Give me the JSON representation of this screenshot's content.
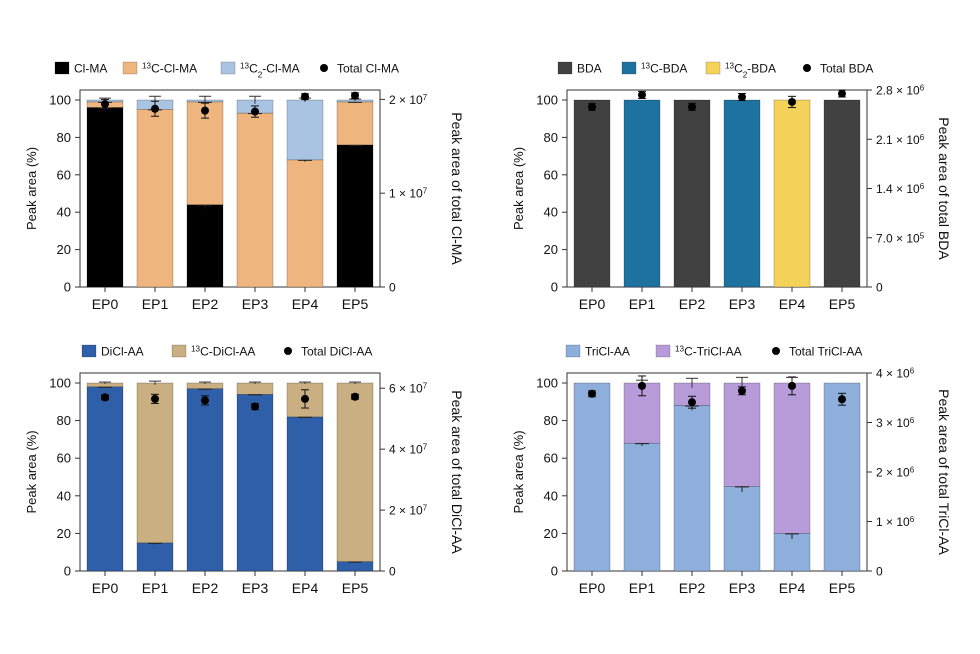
{
  "figure_categories": [
    "EP0",
    "EP1",
    "EP2",
    "EP3",
    "EP4",
    "EP5"
  ],
  "chart_data": [
    {
      "type": "bar",
      "stacked": true,
      "title": "",
      "categories": [
        "EP0",
        "EP1",
        "EP2",
        "EP3",
        "EP4",
        "EP5"
      ],
      "ylabel": "Peak area (%)",
      "ylim": [
        0,
        100
      ],
      "yticks": [
        "0",
        "20",
        "40",
        "60",
        "80",
        "100"
      ],
      "y2label": "Peak area of total Cl-MA",
      "y2ticks": [
        {
          "base": "0",
          "exp": ""
        },
        {
          "base": "1 × 10",
          "exp": "7"
        },
        {
          "base": "2 × 10",
          "exp": "7"
        }
      ],
      "legend": [
        {
          "pre": "",
          "sup": "",
          "main": "Cl-MA",
          "sub": "",
          "post": ""
        },
        {
          "pre": "",
          "sup": "13",
          "main": "C-Cl-MA",
          "sub": "",
          "post": ""
        },
        {
          "pre": "",
          "sup": "13",
          "main": "C",
          "sub": "2",
          "post": "-Cl-MA"
        },
        {
          "pre": "",
          "sup": "",
          "main": "Total Cl-MA",
          "sub": "",
          "post": ""
        }
      ],
      "series": [
        {
          "name": "Cl-MA",
          "color": "#000000",
          "values": [
            96,
            0,
            44,
            0,
            0,
            76
          ]
        },
        {
          "name": "13C-Cl-MA",
          "color": "#EFB57F",
          "values": [
            3,
            95,
            55,
            93,
            68,
            23
          ]
        },
        {
          "name": "13C2-Cl-MA",
          "color": "#A9C4E3",
          "values": [
            1,
            5,
            1,
            7,
            32,
            1
          ]
        }
      ],
      "error_bars": [
        1.0,
        2.0,
        2.0,
        2.0,
        1.0,
        0.5
      ],
      "total": {
        "name": "Total Cl-MA",
        "y2max": 21000000.0,
        "values": [
          19500000.0,
          19000000.0,
          18800000.0,
          18700000.0,
          20300000.0,
          20400000.0
        ],
        "errors": [
          500000.0,
          800000.0,
          800000.0,
          600000.0,
          300000.0,
          300000.0
        ]
      }
    },
    {
      "type": "bar",
      "stacked": true,
      "title": "",
      "categories": [
        "EP0",
        "EP1",
        "EP2",
        "EP3",
        "EP4",
        "EP5"
      ],
      "ylabel": "Peak area (%)",
      "ylim": [
        0,
        100
      ],
      "yticks": [
        "0",
        "20",
        "40",
        "60",
        "80",
        "100"
      ],
      "y2label": "Peak area of total BDA",
      "y2ticks": [
        {
          "base": "0",
          "exp": ""
        },
        {
          "base": "7.0 × 10",
          "exp": "5"
        },
        {
          "base": "1.4 × 10",
          "exp": "6"
        },
        {
          "base": "2.1 × 10",
          "exp": "6"
        },
        {
          "base": "2.8 × 10",
          "exp": "6"
        }
      ],
      "legend": [
        {
          "pre": "",
          "sup": "",
          "main": "BDA",
          "sub": "",
          "post": ""
        },
        {
          "pre": "",
          "sup": "13",
          "main": "C-BDA",
          "sub": "",
          "post": ""
        },
        {
          "pre": "",
          "sup": "13",
          "main": "C",
          "sub": "2",
          "post": "-BDA"
        },
        {
          "pre": "",
          "sup": "",
          "main": "Total BDA",
          "sub": "",
          "post": ""
        }
      ],
      "series": [
        {
          "name": "BDA",
          "color": "#414141",
          "values": [
            100,
            0,
            100,
            0,
            0,
            100
          ]
        },
        {
          "name": "13C-BDA",
          "color": "#1E72A0",
          "values": [
            0,
            100,
            0,
            100,
            0,
            0
          ]
        },
        {
          "name": "13C2-BDA",
          "color": "#F5D35B",
          "values": [
            0,
            0,
            0,
            0,
            100,
            0
          ]
        }
      ],
      "error_bars": [
        0,
        0,
        0,
        0,
        0,
        0
      ],
      "total": {
        "name": "Total BDA",
        "y2max": 2800000.0,
        "values": [
          2560000.0,
          2730000.0,
          2560000.0,
          2700000.0,
          2630000.0,
          2750000.0
        ],
        "errors": [
          50000.0,
          50000.0,
          50000.0,
          50000.0,
          80000.0,
          50000.0
        ]
      }
    },
    {
      "type": "bar",
      "stacked": true,
      "title": "",
      "categories": [
        "EP0",
        "EP1",
        "EP2",
        "EP3",
        "EP4",
        "EP5"
      ],
      "ylabel": "Peak area (%)",
      "ylim": [
        0,
        100
      ],
      "yticks": [
        "0",
        "20",
        "40",
        "60",
        "80",
        "100"
      ],
      "y2label": "Peak area of total DiCl-AA",
      "y2ticks": [
        {
          "base": "0",
          "exp": ""
        },
        {
          "base": "2 × 10",
          "exp": "7"
        },
        {
          "base": "4 × 10",
          "exp": "7"
        },
        {
          "base": "6 × 10",
          "exp": "7"
        }
      ],
      "legend": [
        {
          "pre": "",
          "sup": "",
          "main": "DiCl-AA",
          "sub": "",
          "post": ""
        },
        {
          "pre": "",
          "sup": "13",
          "main": "C-DiCl-AA",
          "sub": "",
          "post": ""
        },
        {
          "pre": "",
          "sup": "",
          "main": "Total DiCl-AA",
          "sub": "",
          "post": ""
        }
      ],
      "series": [
        {
          "name": "DiCl-AA",
          "color": "#2E5FA8",
          "values": [
            98,
            15,
            97,
            94,
            82,
            5
          ]
        },
        {
          "name": "13C-DiCl-AA",
          "color": "#C9AF82",
          "values": [
            2,
            85,
            3,
            6,
            18,
            95
          ]
        }
      ],
      "error_bars": [
        0.5,
        1.0,
        0.5,
        0.5,
        0.5,
        0.5
      ],
      "total": {
        "name": "Total DiCl-AA",
        "y2max": 65000000.0,
        "values": [
          57000000.0,
          56500000.0,
          56000000.0,
          54000000.0,
          56500000.0,
          57200000.0
        ],
        "errors": [
          800000.0,
          1500000.0,
          1500000.0,
          1000000.0,
          3000000.0,
          800000.0
        ]
      }
    },
    {
      "type": "bar",
      "stacked": true,
      "title": "",
      "categories": [
        "EP0",
        "EP1",
        "EP2",
        "EP3",
        "EP4",
        "EP5"
      ],
      "ylabel": "Peak area (%)",
      "ylim": [
        0,
        100
      ],
      "yticks": [
        "0",
        "20",
        "40",
        "60",
        "80",
        "100"
      ],
      "y2label": "Peak area of total TriCl-AA",
      "y2ticks": [
        {
          "base": "0",
          "exp": ""
        },
        {
          "base": "1 × 10",
          "exp": "6"
        },
        {
          "base": "2 × 10",
          "exp": "6"
        },
        {
          "base": "3 × 10",
          "exp": "6"
        },
        {
          "base": "4 × 10",
          "exp": "6"
        }
      ],
      "legend": [
        {
          "pre": "",
          "sup": "",
          "main": "TriCl-AA",
          "sub": "",
          "post": ""
        },
        {
          "pre": "",
          "sup": "13",
          "main": "C-TriCl-AA",
          "sub": "",
          "post": ""
        },
        {
          "pre": "",
          "sup": "",
          "main": "Total TriCl-AA",
          "sub": "",
          "post": ""
        }
      ],
      "series": [
        {
          "name": "TriCl-AA",
          "color": "#8EAEDC",
          "values": [
            100,
            68,
            88,
            45,
            20,
            100
          ]
        },
        {
          "name": "13C-TriCl-AA",
          "color": "#B89CD9",
          "values": [
            0,
            32,
            12,
            55,
            80,
            0
          ]
        }
      ],
      "error_bars": [
        0,
        1.5,
        2.5,
        3.0,
        3.0,
        0
      ],
      "total": {
        "name": "Total TriCl-AA",
        "y2max": 4000000.0,
        "values": [
          3580000.0,
          3740000.0,
          3410000.0,
          3640000.0,
          3740000.0,
          3470000.0
        ],
        "errors": [
          60000.0,
          200000.0,
          120000.0,
          80000.0,
          180000.0,
          120000.0
        ]
      }
    }
  ]
}
